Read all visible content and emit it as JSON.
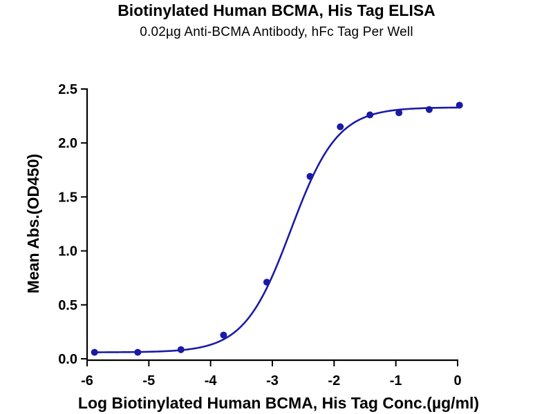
{
  "chart_data": {
    "type": "scatter",
    "title": "Biotinylated Human BCMA, His Tag ELISA",
    "subtitle": "0.02µg Anti-BCMA  Antibody, hFc Tag Per Well",
    "xlabel": "Log Biotinylated Human BCMA, His Tag Conc.(µg/ml)",
    "ylabel": "Mean Abs.(OD450)",
    "xlim": [
      -6,
      0
    ],
    "ylim": [
      0,
      2.5
    ],
    "x_ticks": [
      "-6",
      "-5",
      "-4",
      "-3",
      "-2",
      "-1",
      "0"
    ],
    "y_ticks": [
      "0.0",
      "0.5",
      "1.0",
      "1.5",
      "2.0",
      "2.5"
    ],
    "series": [
      {
        "x": [
          -5.88,
          -5.18,
          -4.48,
          -3.79,
          -3.09,
          -2.39,
          -1.9,
          -1.42,
          -0.95,
          -0.46,
          0.03
        ],
        "y": [
          0.06,
          0.06,
          0.085,
          0.22,
          0.71,
          1.69,
          2.15,
          2.26,
          2.28,
          2.31,
          2.35
        ]
      }
    ],
    "fit": {
      "model": "4PL",
      "bottom": 0.06,
      "top": 2.33,
      "log_ec50": -2.7,
      "hill": 1.15
    },
    "colors": {
      "series": "#1a1aa6",
      "axis": "#000000"
    },
    "grid": false,
    "legend": "none"
  }
}
